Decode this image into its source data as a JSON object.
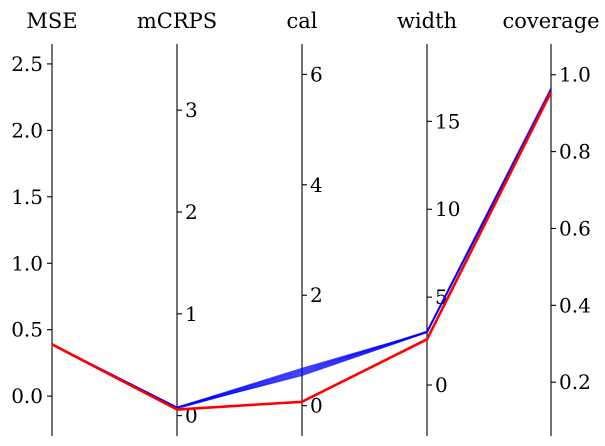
{
  "chart_data": {
    "type": "parallel_coordinates",
    "title": "",
    "axes": [
      {
        "name": "MSE",
        "range": [
          -0.3,
          2.65
        ],
        "ticks": [
          0.0,
          0.5,
          1.0,
          1.5,
          2.0,
          2.5
        ],
        "tick_labels": [
          "0.0",
          "0.5",
          "1.0",
          "1.5",
          "2.0",
          "2.5"
        ],
        "tick_side": "left"
      },
      {
        "name": "mCRPS",
        "range": [
          -0.2,
          3.65
        ],
        "ticks": [
          0,
          1,
          2,
          3
        ],
        "tick_labels": [
          "0",
          "1",
          "2",
          "3"
        ],
        "tick_side": "right"
      },
      {
        "name": "cal",
        "range": [
          -0.55,
          6.55
        ],
        "ticks": [
          0,
          2,
          4,
          6
        ],
        "tick_labels": [
          "0",
          "2",
          "4",
          "6"
        ],
        "tick_side": "right"
      },
      {
        "name": "width",
        "range": [
          -2.9,
          19.4
        ],
        "ticks": [
          0,
          5,
          10,
          15
        ],
        "tick_labels": [
          "0",
          "5",
          "10",
          "15"
        ],
        "tick_side": "right"
      },
      {
        "name": "coverage",
        "range": [
          0.06,
          1.08
        ],
        "ticks": [
          0.2,
          0.4,
          0.6,
          0.8,
          1.0
        ],
        "tick_labels": [
          "0.2",
          "0.4",
          "0.6",
          "0.8",
          "1.0"
        ],
        "tick_side": "right"
      }
    ],
    "series": [
      {
        "color": "#0000ff",
        "style": "bundle",
        "lines": [
          [
            0.39,
            0.08,
            0.55,
            3.0,
            0.96
          ],
          [
            0.39,
            0.07,
            0.58,
            3.0,
            0.96
          ],
          [
            0.39,
            0.08,
            0.61,
            3.05,
            0.965
          ],
          [
            0.39,
            0.08,
            0.64,
            3.0,
            0.96
          ],
          [
            0.39,
            0.08,
            0.67,
            3.0,
            0.96
          ]
        ]
      },
      {
        "color": "#ff0000",
        "style": "single",
        "lines": [
          [
            0.39,
            0.06,
            0.07,
            2.6,
            0.955
          ]
        ]
      }
    ]
  }
}
